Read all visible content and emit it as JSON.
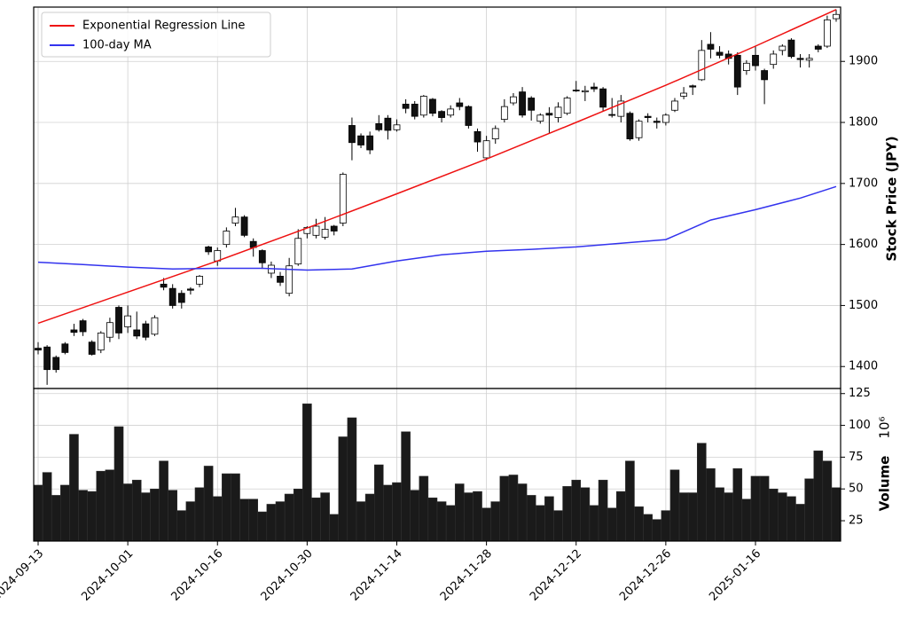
{
  "chart_data": {
    "type": "candlestick",
    "x": [
      "2024-09-13",
      "2024-09-17",
      "2024-09-18",
      "2024-09-19",
      "2024-09-20",
      "2024-09-24",
      "2024-09-25",
      "2024-09-26",
      "2024-09-27",
      "2024-09-30",
      "2024-10-01",
      "2024-10-02",
      "2024-10-03",
      "2024-10-04",
      "2024-10-07",
      "2024-10-08",
      "2024-10-09",
      "2024-10-10",
      "2024-10-11",
      "2024-10-15",
      "2024-10-16",
      "2024-10-17",
      "2024-10-18",
      "2024-10-21",
      "2024-10-22",
      "2024-10-23",
      "2024-10-24",
      "2024-10-25",
      "2024-10-28",
      "2024-10-29",
      "2024-10-30",
      "2024-10-31",
      "2024-11-01",
      "2024-11-05",
      "2024-11-06",
      "2024-11-07",
      "2024-11-08",
      "2024-11-11",
      "2024-11-12",
      "2024-11-13",
      "2024-11-14",
      "2024-11-15",
      "2024-11-18",
      "2024-11-19",
      "2024-11-20",
      "2024-11-21",
      "2024-11-22",
      "2024-11-25",
      "2024-11-26",
      "2024-11-27",
      "2024-11-28",
      "2024-11-29",
      "2024-12-02",
      "2024-12-03",
      "2024-12-04",
      "2024-12-05",
      "2024-12-06",
      "2024-12-09",
      "2024-12-10",
      "2024-12-11",
      "2024-12-12",
      "2024-12-13",
      "2024-12-16",
      "2024-12-17",
      "2024-12-18",
      "2024-12-19",
      "2024-12-20",
      "2024-12-23",
      "2024-12-24",
      "2024-12-25",
      "2024-12-26",
      "2024-12-27",
      "2024-12-30",
      "2025-01-06",
      "2025-01-07",
      "2025-01-08",
      "2025-01-09",
      "2025-01-10",
      "2025-01-14",
      "2025-01-15",
      "2025-01-16",
      "2025-01-17",
      "2025-01-20",
      "2025-01-21",
      "2025-01-22",
      "2025-01-23",
      "2025-01-24",
      "2025-01-27",
      "2025-01-28",
      "2025-01-29"
    ],
    "open": [
      1430,
      1432,
      1415,
      1437,
      1460,
      1475,
      1440,
      1427,
      1448,
      1497,
      1465,
      1460,
      1470,
      1453,
      1535,
      1528,
      1520,
      1527,
      1535,
      1596,
      1573,
      1600,
      1635,
      1645,
      1605,
      1590,
      1553,
      1548,
      1520,
      1568,
      1618,
      1615,
      1612,
      1630,
      1635,
      1795,
      1778,
      1778,
      1798,
      1807,
      1788,
      1830,
      1830,
      1812,
      1838,
      1818,
      1812,
      1832,
      1826,
      1785,
      1742,
      1773,
      1805,
      1832,
      1850,
      1840,
      1802,
      1815,
      1808,
      1815,
      1853,
      1850,
      1858,
      1855,
      1813,
      1810,
      1815,
      1775,
      1810,
      1802,
      1800,
      1820,
      1843,
      1860,
      1870,
      1928,
      1915,
      1912,
      1910,
      1885,
      1910,
      1885,
      1895,
      1918,
      1935,
      1905,
      1902,
      1925,
      1925,
      1970
    ],
    "high": [
      1440,
      1435,
      1418,
      1440,
      1470,
      1478,
      1443,
      1458,
      1480,
      1500,
      1500,
      1490,
      1475,
      1484,
      1545,
      1535,
      1525,
      1530,
      1550,
      1598,
      1595,
      1628,
      1660,
      1648,
      1610,
      1592,
      1572,
      1555,
      1578,
      1625,
      1630,
      1642,
      1645,
      1632,
      1718,
      1808,
      1782,
      1785,
      1812,
      1812,
      1805,
      1838,
      1835,
      1845,
      1840,
      1820,
      1828,
      1840,
      1828,
      1790,
      1778,
      1795,
      1838,
      1848,
      1858,
      1843,
      1815,
      1825,
      1833,
      1843,
      1868,
      1860,
      1865,
      1858,
      1840,
      1845,
      1818,
      1805,
      1815,
      1808,
      1815,
      1840,
      1858,
      1862,
      1935,
      1948,
      1925,
      1918,
      1915,
      1902,
      1925,
      1888,
      1918,
      1928,
      1938,
      1912,
      1912,
      1928,
      1975,
      1985
    ],
    "low": [
      1420,
      1370,
      1390,
      1420,
      1450,
      1450,
      1418,
      1422,
      1440,
      1445,
      1455,
      1445,
      1443,
      1450,
      1525,
      1495,
      1495,
      1518,
      1530,
      1583,
      1565,
      1595,
      1630,
      1612,
      1580,
      1560,
      1545,
      1532,
      1515,
      1565,
      1610,
      1610,
      1608,
      1615,
      1630,
      1738,
      1758,
      1748,
      1785,
      1772,
      1785,
      1815,
      1805,
      1808,
      1810,
      1800,
      1808,
      1820,
      1790,
      1752,
      1738,
      1765,
      1800,
      1828,
      1808,
      1803,
      1798,
      1782,
      1800,
      1812,
      1850,
      1835,
      1850,
      1818,
      1808,
      1800,
      1770,
      1770,
      1800,
      1790,
      1795,
      1817,
      1838,
      1845,
      1868,
      1905,
      1905,
      1895,
      1845,
      1878,
      1885,
      1830,
      1888,
      1910,
      1905,
      1890,
      1890,
      1915,
      1922,
      1965
    ],
    "close": [
      1427,
      1395,
      1395,
      1423,
      1456,
      1457,
      1420,
      1455,
      1472,
      1455,
      1483,
      1450,
      1448,
      1480,
      1530,
      1500,
      1505,
      1525,
      1548,
      1588,
      1590,
      1622,
      1645,
      1615,
      1595,
      1570,
      1566,
      1538,
      1565,
      1610,
      1628,
      1630,
      1625,
      1622,
      1715,
      1767,
      1763,
      1755,
      1788,
      1787,
      1796,
      1823,
      1810,
      1843,
      1815,
      1808,
      1822,
      1826,
      1795,
      1768,
      1770,
      1790,
      1826,
      1842,
      1812,
      1820,
      1812,
      1812,
      1825,
      1840,
      1852,
      1852,
      1855,
      1825,
      1812,
      1835,
      1773,
      1802,
      1808,
      1800,
      1812,
      1835,
      1848,
      1858,
      1918,
      1920,
      1910,
      1905,
      1858,
      1897,
      1893,
      1870,
      1912,
      1925,
      1908,
      1903,
      1905,
      1920,
      1968,
      1977
    ],
    "series": [
      {
        "name": "Exponential Regression Line",
        "color": "#ee1111",
        "x": [
          "2024-09-13",
          "2024-10-01",
          "2024-10-16",
          "2024-10-30",
          "2024-11-14",
          "2024-11-28",
          "2024-12-12",
          "2024-12-26",
          "2025-01-16",
          "2025-01-29"
        ],
        "values": [
          1471,
          1522,
          1573,
          1627,
          1683,
          1740,
          1800,
          1861,
          1925,
          1985
        ]
      },
      {
        "name": "100-day MA",
        "color": "#3333ee",
        "x": [
          "2024-09-13",
          "2024-09-24",
          "2024-10-01",
          "2024-10-08",
          "2024-10-16",
          "2024-10-23",
          "2024-10-30",
          "2024-11-07",
          "2024-11-14",
          "2024-11-21",
          "2024-11-28",
          "2024-12-05",
          "2024-12-12",
          "2024-12-19",
          "2024-12-26",
          "2025-01-08",
          "2025-01-16",
          "2025-01-23",
          "2025-01-29"
        ],
        "values": [
          1571,
          1567,
          1563,
          1560,
          1561,
          1561,
          1558,
          1560,
          1573,
          1583,
          1589,
          1592,
          1596,
          1602,
          1608,
          1640,
          1657,
          1676,
          1695
        ]
      }
    ],
    "ylabel": "Stock Price (JPY)",
    "ylim": [
      1364,
      1989
    ],
    "yticks": [
      1400,
      1500,
      1600,
      1700,
      1800,
      1900
    ],
    "xticks": [
      "2024-09-13",
      "2024-10-01",
      "2024-10-16",
      "2024-10-30",
      "2024-11-14",
      "2024-11-28",
      "2024-12-12",
      "2024-12-26",
      "2025-01-16"
    ],
    "grid": true,
    "legend": "upper left",
    "volume": {
      "label": "Volume",
      "offset_label": "10⁶",
      "color": "#1a1a1a",
      "values": [
        53,
        63,
        45,
        53,
        93,
        49,
        48,
        64,
        65,
        99,
        54,
        57,
        47,
        50,
        72,
        49,
        33,
        40,
        51,
        68,
        44,
        62,
        62,
        42,
        42,
        32,
        38,
        40,
        46,
        50,
        117,
        43,
        47,
        30,
        91,
        106,
        40,
        46,
        69,
        53,
        55,
        95,
        49,
        60,
        43,
        40,
        37,
        54,
        47,
        48,
        35,
        40,
        60,
        61,
        54,
        45,
        37,
        44,
        33,
        52,
        57,
        51,
        37,
        57,
        35,
        48,
        72,
        36,
        30,
        26,
        33,
        65,
        47,
        47,
        86,
        66,
        51,
        47,
        66,
        42,
        60,
        60,
        50,
        47,
        44,
        38,
        58,
        80,
        72,
        51
      ],
      "ylim": [
        9,
        129
      ],
      "yticks": [
        25,
        50,
        75,
        100,
        125
      ]
    }
  }
}
